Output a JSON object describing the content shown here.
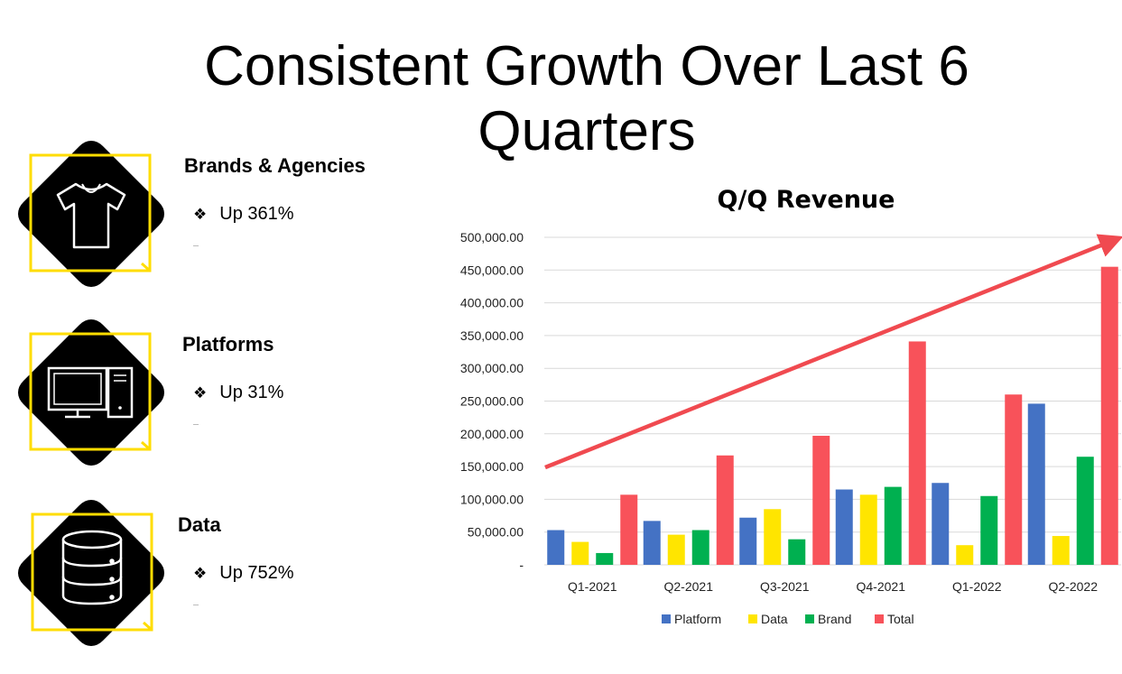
{
  "slide": {
    "title_line1": "Consistent Growth Over Last 6",
    "title_line2": "Quarters"
  },
  "segments": [
    {
      "heading": "Brands & Agencies",
      "bullet": "Up 361%",
      "icon": "t-shirt-icon"
    },
    {
      "heading": "Platforms",
      "bullet": "Up 31%",
      "icon": "desktop-computer-icon"
    },
    {
      "heading": "Data",
      "bullet": "Up 752%",
      "icon": "database-icon"
    }
  ],
  "colors": {
    "platform": "#4472C4",
    "data": "#FFE500",
    "brand": "#00B050",
    "total": "#F8525A",
    "trend_arrow": "#F04A50",
    "frame": "#FFDD00"
  },
  "chart_data": {
    "type": "bar",
    "title": "Q/Q Revenue",
    "categories": [
      "Q1-2021",
      "Q2-2021",
      "Q3-2021",
      "Q4-2021",
      "Q1-2022",
      "Q2-2022"
    ],
    "series": [
      {
        "name": "Platform",
        "values": [
          53000,
          67000,
          72000,
          115000,
          125000,
          246000
        ]
      },
      {
        "name": "Data",
        "values": [
          35000,
          46000,
          85000,
          107000,
          30000,
          44000
        ]
      },
      {
        "name": "Brand",
        "values": [
          18000,
          53000,
          39000,
          119000,
          105000,
          165000
        ]
      },
      {
        "name": "Total",
        "values": [
          107000,
          167000,
          197000,
          341000,
          260000,
          455000
        ]
      }
    ],
    "yticks": [
      "-",
      "50,000.00",
      "100,000.00",
      "150,000.00",
      "200,000.00",
      "250,000.00",
      "300,000.00",
      "350,000.00",
      "400,000.00",
      "450,000.00",
      "500,000.00"
    ],
    "ylim": [
      0,
      500000
    ],
    "grid": true,
    "legend_position": "bottom",
    "trend_arrow": true
  }
}
